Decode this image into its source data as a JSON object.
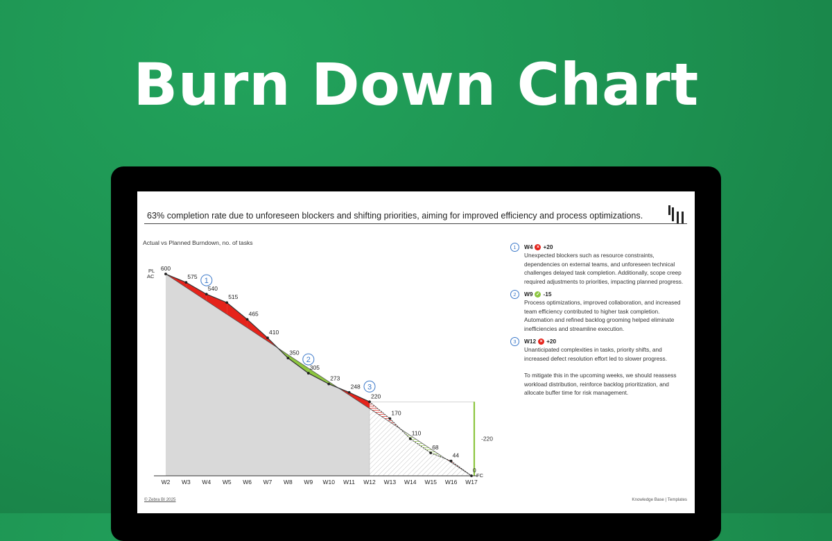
{
  "hero": {
    "title": "Burn Down Chart"
  },
  "report": {
    "headline": "63% completion rate due to unforeseen blockers and shifting priorities, aiming for improved efficiency and process optimizations.",
    "chart_subtitle": "Actual vs Planned Burndown, no. of tasks",
    "footer_left": "© Zebra BI 2025",
    "footer_right": "Knowledge Base  |  Templates"
  },
  "notes": [
    {
      "num": "1",
      "week": "W4",
      "delta": "+20",
      "status": "negative",
      "text": [
        "Unexpected blockers such as resource constraints, dependencies on external teams, and unforeseen technical challenges delayed task completion. Additionally, scope creep required adjustments to priorities, impacting planned progress."
      ]
    },
    {
      "num": "2",
      "week": "W9",
      "delta": "-15",
      "status": "positive",
      "text": [
        "Process optimizations, improved collaboration, and increased team efficiency contributed to higher task completion. Automation and refined backlog grooming helped eliminate inefficiencies and streamline execution."
      ]
    },
    {
      "num": "3",
      "week": "W12",
      "delta": "+20",
      "status": "negative",
      "text": [
        "Unanticipated complexities in tasks, priority shifts, and increased defect resolution effort led to slower progress.",
        "To mitigate this in the upcoming weeks, we should reassess workload distribution, reinforce backlog prioritization, and allocate buffer time for risk management."
      ]
    }
  ],
  "colors": {
    "negative": "#e5231b",
    "positive": "#8cc63f",
    "accent": "#3a78c9",
    "area": "#d9d9d9"
  },
  "chart_data": {
    "type": "line",
    "categories": [
      "W2",
      "W3",
      "W4",
      "W5",
      "W6",
      "W7",
      "W8",
      "W9",
      "W10",
      "W11",
      "W12",
      "W13",
      "W14",
      "W15",
      "W16",
      "W17"
    ],
    "series": [
      {
        "name": "PL",
        "values": [
          600,
          560,
          520,
          480,
          440,
          400,
          360,
          320,
          280,
          240,
          200,
          160,
          120,
          80,
          40,
          0
        ]
      },
      {
        "name": "AC",
        "values": [
          600,
          575,
          540,
          515,
          465,
          410,
          350,
          305,
          273,
          248,
          220,
          null,
          null,
          null,
          null,
          null
        ]
      },
      {
        "name": "FC",
        "values": [
          null,
          null,
          null,
          null,
          null,
          null,
          null,
          null,
          null,
          null,
          220,
          170,
          110,
          68,
          44,
          0
        ]
      }
    ],
    "point_labels": [
      "600",
      "575",
      "540",
      "515",
      "465",
      "410",
      "350",
      "305",
      "273",
      "248",
      "220",
      "170",
      "110",
      "68",
      "44",
      "0"
    ],
    "variance_label": "-220",
    "annotations": [
      {
        "label": "1",
        "week": "W4"
      },
      {
        "label": "2",
        "week": "W9"
      },
      {
        "label": "3",
        "week": "W12"
      }
    ],
    "ylim": [
      0,
      600
    ]
  }
}
